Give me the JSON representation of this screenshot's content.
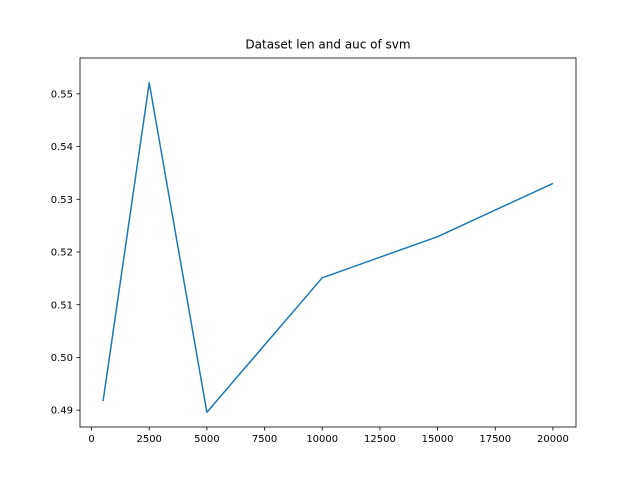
{
  "chart_data": {
    "type": "line",
    "title": "Dataset len and auc of svm",
    "xlabel": "",
    "ylabel": "",
    "xlim": [
      -500,
      21000
    ],
    "ylim": [
      0.4868,
      0.5568
    ],
    "xticks": [
      0,
      2500,
      5000,
      7500,
      10000,
      12500,
      15000,
      17500,
      20000
    ],
    "xtick_labels": [
      "0",
      "2500",
      "5000",
      "7500",
      "10000",
      "12500",
      "15000",
      "17500",
      "20000"
    ],
    "yticks": [
      0.49,
      0.5,
      0.51,
      0.52,
      0.53,
      0.54,
      0.55
    ],
    "ytick_labels": [
      "0.49",
      "0.50",
      "0.51",
      "0.52",
      "0.53",
      "0.54",
      "0.55"
    ],
    "grid": false,
    "series": [
      {
        "color": "#1f77b4",
        "x": [
          500,
          2500,
          5000,
          10000,
          15000,
          20000
        ],
        "y": [
          0.4917,
          0.5521,
          0.4896,
          0.5151,
          0.5229,
          0.533
        ]
      }
    ]
  }
}
